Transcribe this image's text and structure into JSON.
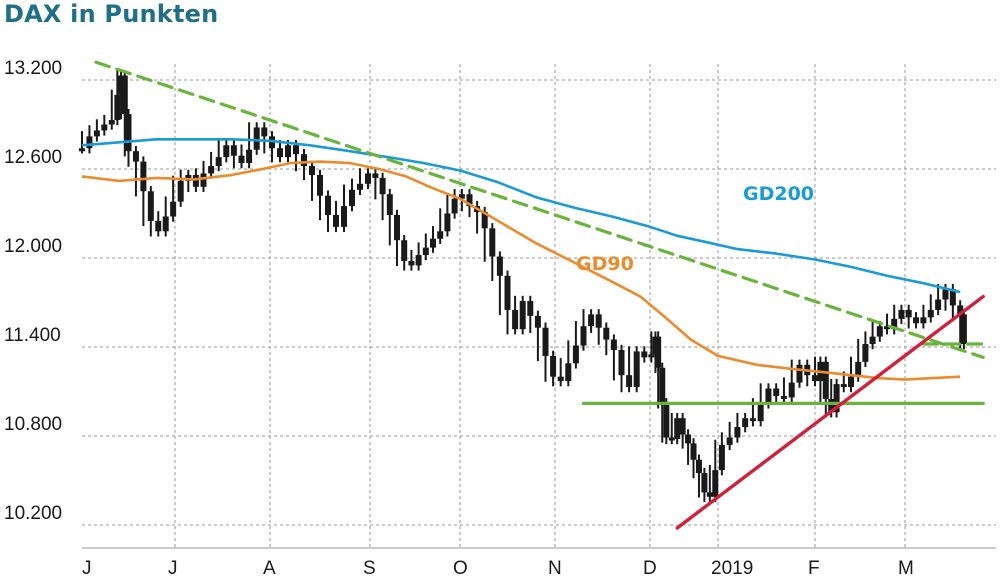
{
  "title": "DAX in Punkten",
  "colors": {
    "title": "#1f6f87",
    "price": "#1a1a1a",
    "gd200": "#1a9ad6",
    "gd90": "#ec8a2e",
    "trend_down": "#6ab43e",
    "support": "#6ab43e",
    "trend_up": "#d3203a",
    "grid": "#9a9a9a"
  },
  "chart_data": {
    "type": "line",
    "title": "DAX in Punkten",
    "xlabel": "",
    "ylabel": "",
    "ylim": [
      10200,
      13200
    ],
    "yticks": [
      13200,
      12600,
      12000,
      11400,
      10800,
      10200
    ],
    "ytick_labels": [
      "13.200",
      "12.600",
      "12.000",
      "11.400",
      "10.800",
      "10.200"
    ],
    "x_ticks": [
      {
        "label": "J",
        "month": 0
      },
      {
        "label": "J",
        "month": 1
      },
      {
        "label": "A",
        "month": 2
      },
      {
        "label": "S",
        "month": 3
      },
      {
        "label": "O",
        "month": 4
      },
      {
        "label": "N",
        "month": 5
      },
      {
        "label": "D",
        "month": 6
      },
      {
        "label": "2019",
        "month": 7
      },
      {
        "label": "F",
        "month": 8
      },
      {
        "label": "M",
        "month": 9
      }
    ],
    "xlim_months": [
      0,
      9.85
    ],
    "grid": true,
    "series": [
      {
        "name": "DAX",
        "kind": "price",
        "points": [
          [
            0.0,
            12740
          ],
          [
            0.08,
            12820
          ],
          [
            0.16,
            12860
          ],
          [
            0.24,
            12900
          ],
          [
            0.32,
            12930
          ],
          [
            0.38,
            13100
          ],
          [
            0.42,
            13230
          ],
          [
            0.46,
            12970
          ],
          [
            0.5,
            12720
          ],
          [
            0.58,
            12650
          ],
          [
            0.66,
            12450
          ],
          [
            0.74,
            12250
          ],
          [
            0.82,
            12180
          ],
          [
            0.9,
            12280
          ],
          [
            0.98,
            12380
          ],
          [
            1.06,
            12520
          ],
          [
            1.14,
            12560
          ],
          [
            1.22,
            12480
          ],
          [
            1.3,
            12570
          ],
          [
            1.38,
            12620
          ],
          [
            1.46,
            12680
          ],
          [
            1.54,
            12760
          ],
          [
            1.62,
            12690
          ],
          [
            1.7,
            12640
          ],
          [
            1.78,
            12730
          ],
          [
            1.86,
            12880
          ],
          [
            1.94,
            12820
          ],
          [
            2.02,
            12740
          ],
          [
            2.1,
            12680
          ],
          [
            2.18,
            12760
          ],
          [
            2.26,
            12700
          ],
          [
            2.34,
            12620
          ],
          [
            2.42,
            12560
          ],
          [
            2.5,
            12420
          ],
          [
            2.58,
            12290
          ],
          [
            2.66,
            12210
          ],
          [
            2.74,
            12350
          ],
          [
            2.82,
            12460
          ],
          [
            2.9,
            12500
          ],
          [
            2.98,
            12570
          ],
          [
            3.06,
            12540
          ],
          [
            3.14,
            12430
          ],
          [
            3.22,
            12290
          ],
          [
            3.3,
            12120
          ],
          [
            3.38,
            11980
          ],
          [
            3.46,
            11950
          ],
          [
            3.54,
            12020
          ],
          [
            3.62,
            12070
          ],
          [
            3.7,
            12130
          ],
          [
            3.78,
            12180
          ],
          [
            3.86,
            12300
          ],
          [
            3.94,
            12400
          ],
          [
            4.02,
            12430
          ],
          [
            4.1,
            12350
          ],
          [
            4.18,
            12310
          ],
          [
            4.26,
            12200
          ],
          [
            4.34,
            12010
          ],
          [
            4.42,
            11880
          ],
          [
            4.5,
            11650
          ],
          [
            4.58,
            11520
          ],
          [
            4.66,
            11710
          ],
          [
            4.74,
            11610
          ],
          [
            4.82,
            11530
          ],
          [
            4.9,
            11340
          ],
          [
            4.98,
            11200
          ],
          [
            5.06,
            11170
          ],
          [
            5.14,
            11290
          ],
          [
            5.22,
            11410
          ],
          [
            5.3,
            11540
          ],
          [
            5.38,
            11620
          ],
          [
            5.46,
            11530
          ],
          [
            5.54,
            11450
          ],
          [
            5.62,
            11380
          ],
          [
            5.7,
            11210
          ],
          [
            5.78,
            11130
          ],
          [
            5.86,
            11370
          ],
          [
            5.94,
            11330
          ],
          [
            6.02,
            11350
          ],
          [
            6.08,
            11470
          ],
          [
            6.12,
            11260
          ],
          [
            6.18,
            11020
          ],
          [
            6.24,
            10790
          ],
          [
            6.32,
            10780
          ],
          [
            6.4,
            10920
          ],
          [
            6.48,
            10810
          ],
          [
            6.56,
            10750
          ],
          [
            6.64,
            10640
          ],
          [
            6.72,
            10550
          ],
          [
            6.8,
            10420
          ],
          [
            6.88,
            10390
          ],
          [
            6.96,
            10570
          ],
          [
            7.04,
            10740
          ],
          [
            7.12,
            10790
          ],
          [
            7.2,
            10860
          ],
          [
            7.28,
            10920
          ],
          [
            7.36,
            10900
          ],
          [
            7.44,
            11020
          ],
          [
            7.52,
            11120
          ],
          [
            7.6,
            11070
          ],
          [
            7.68,
            11060
          ],
          [
            7.76,
            11160
          ],
          [
            7.84,
            11280
          ],
          [
            7.92,
            11210
          ],
          [
            8.0,
            11170
          ],
          [
            8.06,
            11300
          ],
          [
            8.12,
            11050
          ],
          [
            8.18,
            10960
          ],
          [
            8.24,
            11150
          ],
          [
            8.32,
            11130
          ],
          [
            8.4,
            11200
          ],
          [
            8.48,
            11300
          ],
          [
            8.56,
            11420
          ],
          [
            8.64,
            11470
          ],
          [
            8.72,
            11540
          ],
          [
            8.8,
            11520
          ],
          [
            8.88,
            11590
          ],
          [
            8.96,
            11650
          ],
          [
            9.04,
            11600
          ],
          [
            9.12,
            11560
          ],
          [
            9.2,
            11600
          ],
          [
            9.28,
            11650
          ],
          [
            9.36,
            11720
          ],
          [
            9.44,
            11790
          ],
          [
            9.52,
            11680
          ],
          [
            9.6,
            11620
          ],
          [
            9.64,
            11420
          ]
        ]
      },
      {
        "name": "GD200",
        "kind": "ma",
        "points": [
          [
            0.0,
            12760
          ],
          [
            0.4,
            12780
          ],
          [
            0.8,
            12800
          ],
          [
            1.2,
            12800
          ],
          [
            1.6,
            12800
          ],
          [
            2.0,
            12790
          ],
          [
            2.4,
            12760
          ],
          [
            2.8,
            12720
          ],
          [
            3.2,
            12680
          ],
          [
            3.6,
            12640
          ],
          [
            4.0,
            12590
          ],
          [
            4.4,
            12510
          ],
          [
            4.8,
            12410
          ],
          [
            5.2,
            12340
          ],
          [
            5.6,
            12280
          ],
          [
            6.0,
            12210
          ],
          [
            6.4,
            12150
          ],
          [
            6.8,
            12110
          ],
          [
            7.2,
            12060
          ],
          [
            7.6,
            12030
          ],
          [
            8.0,
            11990
          ],
          [
            8.4,
            11940
          ],
          [
            8.8,
            11880
          ],
          [
            9.2,
            11830
          ],
          [
            9.6,
            11770
          ]
        ]
      },
      {
        "name": "GD90",
        "kind": "ma",
        "points": [
          [
            0.0,
            12550
          ],
          [
            0.4,
            12520
          ],
          [
            0.8,
            12540
          ],
          [
            1.2,
            12530
          ],
          [
            1.6,
            12560
          ],
          [
            2.0,
            12610
          ],
          [
            2.2,
            12640
          ],
          [
            2.5,
            12650
          ],
          [
            2.8,
            12640
          ],
          [
            3.1,
            12600
          ],
          [
            3.4,
            12550
          ],
          [
            3.7,
            12470
          ],
          [
            4.0,
            12400
          ],
          [
            4.4,
            12250
          ],
          [
            4.8,
            12100
          ],
          [
            5.2,
            11970
          ],
          [
            5.6,
            11840
          ],
          [
            5.9,
            11740
          ],
          [
            6.2,
            11610
          ],
          [
            6.6,
            11450
          ],
          [
            7.0,
            11340
          ],
          [
            7.4,
            11280
          ],
          [
            7.8,
            11250
          ],
          [
            8.1,
            11230
          ],
          [
            8.4,
            11210
          ],
          [
            8.7,
            11190
          ],
          [
            9.0,
            11180
          ],
          [
            9.3,
            11190
          ],
          [
            9.6,
            11200
          ]
        ]
      }
    ],
    "lines": [
      {
        "name": "Abwärtstrend",
        "kind": "dashed",
        "from": [
          0.15,
          13320
        ],
        "to": [
          9.85,
          11330
        ]
      },
      {
        "name": "Widerstand",
        "kind": "dashed",
        "from": [
          9.2,
          11420
        ],
        "to": [
          9.85,
          11420
        ]
      },
      {
        "name": "Unterstützung",
        "kind": "solid",
        "from": [
          5.3,
          11020
        ],
        "to": [
          9.85,
          11020
        ]
      },
      {
        "name": "Aufwärtstrend",
        "kind": "solid",
        "from": [
          6.4,
          10180
        ],
        "to": [
          9.85,
          11740
        ]
      }
    ],
    "labels": [
      {
        "text": "GD200",
        "series": "GD200"
      },
      {
        "text": "GD90",
        "series": "GD90"
      }
    ]
  }
}
